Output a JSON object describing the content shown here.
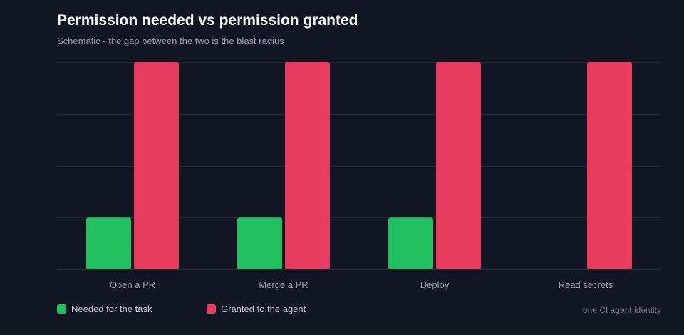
{
  "title": "Permission needed vs permission granted",
  "subtitle": "Schematic - the gap between the two is the blast radius",
  "footnote": "one CI agent identity",
  "colors": {
    "background": "#111623",
    "gridline": "#232a38",
    "needed": "#22c05e",
    "granted": "#e83c5f",
    "tick_label": "#98a1b3"
  },
  "chart_data": {
    "type": "bar",
    "title": "Permission needed vs permission granted",
    "subtitle": "Schematic - the gap between the two is the blast radius",
    "categories": [
      "Open a PR",
      "Merge a PR",
      "Deploy",
      "Read secrets"
    ],
    "series": [
      {
        "name": "Needed for the task",
        "color": "#22c05e",
        "values": [
          1,
          1,
          1,
          0
        ]
      },
      {
        "name": "Granted to the agent",
        "color": "#e83c5f",
        "values": [
          4,
          4,
          4,
          4
        ]
      }
    ],
    "ylim": [
      0,
      4
    ],
    "grid": true,
    "y_tick_labels_shown": false,
    "legend": "bottom-left"
  }
}
